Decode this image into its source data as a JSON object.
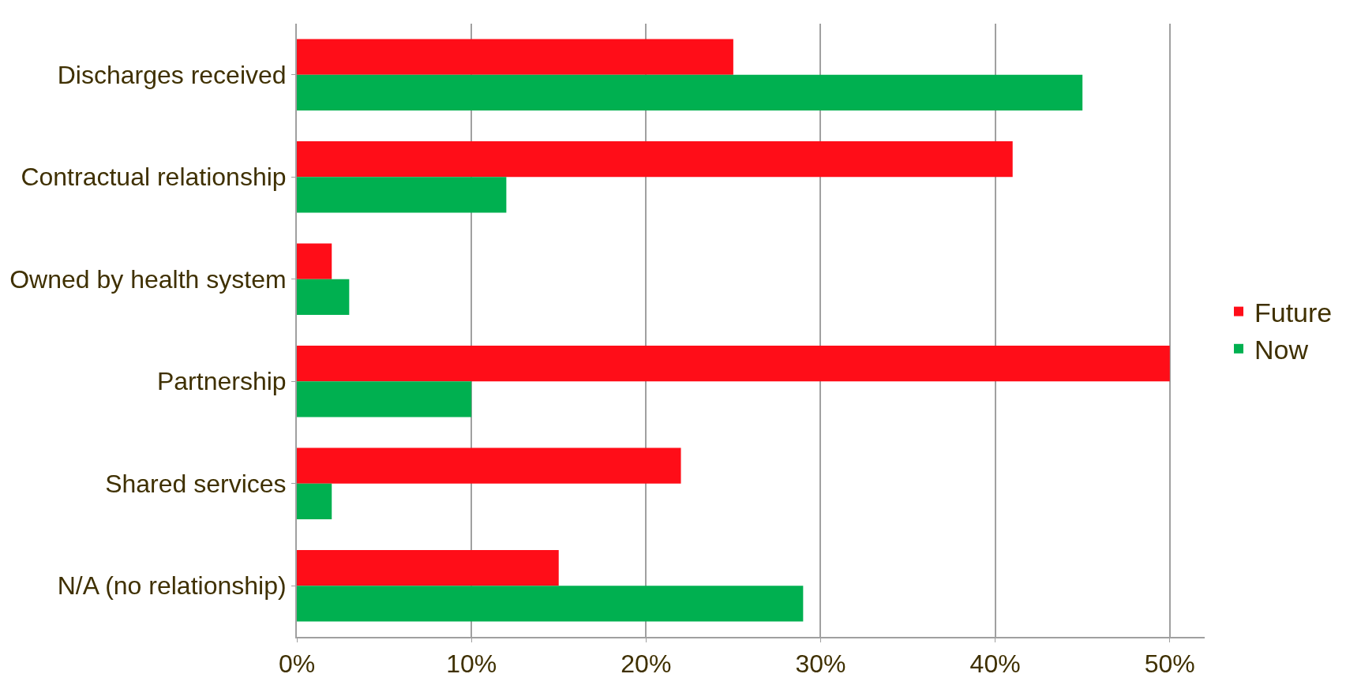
{
  "chart_data": {
    "type": "bar",
    "orientation": "horizontal",
    "categories": [
      "Discharges received",
      "Contractual relationship",
      "Owned by health system",
      "Partnership",
      "Shared services",
      "N/A (no relationship)"
    ],
    "series": [
      {
        "name": "Future",
        "color": "#ff0d18",
        "values": [
          25,
          41,
          2,
          50,
          22,
          15
        ]
      },
      {
        "name": "Now",
        "color": "#00b050",
        "values": [
          45,
          12,
          3,
          10,
          2,
          29
        ]
      }
    ],
    "xlim": [
      0,
      52
    ],
    "xticks": [
      {
        "value": 0,
        "label": "0%"
      },
      {
        "value": 10,
        "label": "10%"
      },
      {
        "value": 20,
        "label": "20%"
      },
      {
        "value": 30,
        "label": "30%"
      },
      {
        "value": 40,
        "label": "40%"
      },
      {
        "value": 50,
        "label": "50%"
      }
    ],
    "grid": "x",
    "legend": "right"
  }
}
